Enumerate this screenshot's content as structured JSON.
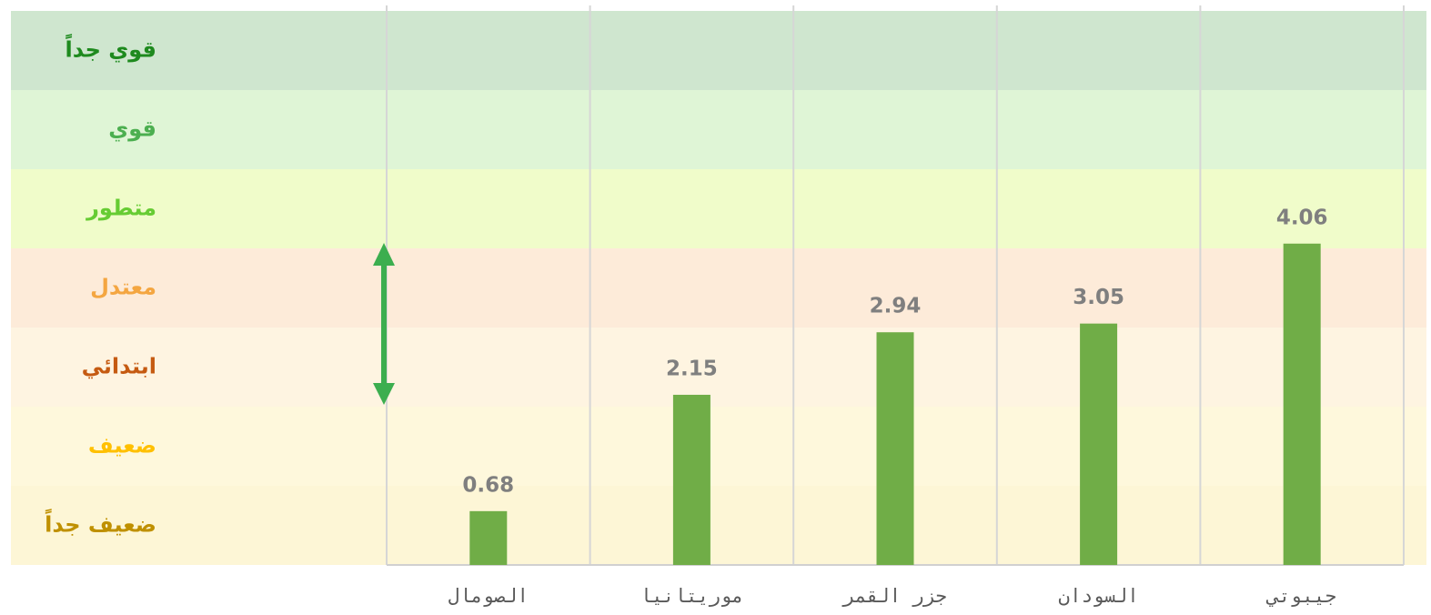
{
  "chart_data": {
    "type": "bar",
    "categories": [
      "الصومال",
      "موريتانيا",
      "جزر القمر",
      "السودان",
      "جيبوتي"
    ],
    "values": [
      0.68,
      2.15,
      2.94,
      3.05,
      4.06
    ],
    "color": "#70ad47",
    "ylim": [
      0,
      7
    ],
    "bands": [
      {
        "label": "ضعيف جداً",
        "from": 0,
        "to": 1,
        "color": "#fdf6d6",
        "text_color": "#bf9000"
      },
      {
        "label": "ضعيف",
        "from": 1,
        "to": 2,
        "color": "#fef8dc",
        "text_color": "#ffc000"
      },
      {
        "label": "ابتدائي",
        "from": 2,
        "to": 3,
        "color": "#fef4e1",
        "text_color": "#c55a11"
      },
      {
        "label": "معتدل",
        "from": 3,
        "to": 4,
        "color": "#fdebd9",
        "text_color": "#f4a641"
      },
      {
        "label": "متطور",
        "from": 4,
        "to": 5,
        "color": "#f0fcca",
        "text_color": "#66cc33"
      },
      {
        "label": "قوي",
        "from": 5,
        "to": 6,
        "color": "#dff5d6",
        "text_color": "#4caf50"
      },
      {
        "label": "قوي جداً",
        "from": 6,
        "to": 7,
        "color": "#cfe6cf",
        "text_color": "#1e8a1e"
      }
    ]
  }
}
